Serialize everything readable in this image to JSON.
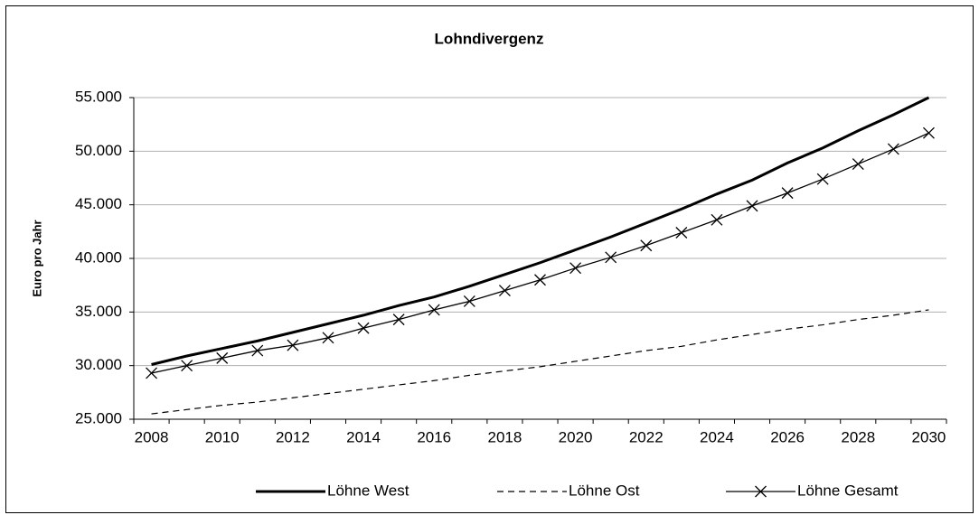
{
  "chart_data": {
    "type": "line",
    "title": "Lohndivergenz",
    "y_label": "Euro pro Jahr",
    "categories": [
      "2008",
      null,
      "2010",
      null,
      "2012",
      null,
      "2014",
      null,
      "2016",
      null,
      "2018",
      null,
      "2020",
      null,
      "2022",
      null,
      "2024",
      null,
      "2026",
      null,
      "2028",
      null,
      "2030"
    ],
    "series": [
      {
        "name": "Löhne West",
        "color": "#000000",
        "line_style": "thick",
        "marker": "none",
        "values": [
          30100,
          30900,
          31600,
          32300,
          33100,
          33900,
          34700,
          35600,
          36400,
          37400,
          38500,
          39600,
          40800,
          42000,
          43300,
          44600,
          46000,
          47300,
          48900,
          50300,
          51900,
          53400,
          55000
        ]
      },
      {
        "name": "Löhne Ost",
        "color": "#000000",
        "line_style": "dashed",
        "marker": "none",
        "values": [
          25500,
          25900,
          26300,
          26600,
          27000,
          27400,
          27800,
          28200,
          28600,
          29100,
          29500,
          29900,
          30400,
          30900,
          31400,
          31800,
          32400,
          32900,
          33400,
          33800,
          34300,
          34700,
          35200
        ]
      },
      {
        "name": "Löhne Gesamt",
        "color": "#000000",
        "line_style": "thin",
        "marker": "x",
        "values": [
          29300,
          30000,
          30700,
          31400,
          31900,
          32600,
          33500,
          34300,
          35200,
          36000,
          37000,
          38000,
          39100,
          40100,
          41200,
          42400,
          43600,
          44900,
          46100,
          47400,
          48800,
          50200,
          51700
        ]
      }
    ],
    "ylim": [
      25000,
      55000
    ],
    "yticks": [
      {
        "value": 25000,
        "label": "25.000"
      },
      {
        "value": 30000,
        "label": "30.000"
      },
      {
        "value": 35000,
        "label": "35.000"
      },
      {
        "value": 40000,
        "label": "40.000"
      },
      {
        "value": 45000,
        "label": "45.000"
      },
      {
        "value": 50000,
        "label": "50.000"
      },
      {
        "value": 55000,
        "label": "55.000"
      }
    ],
    "grid": true,
    "legend_position": "bottom"
  }
}
